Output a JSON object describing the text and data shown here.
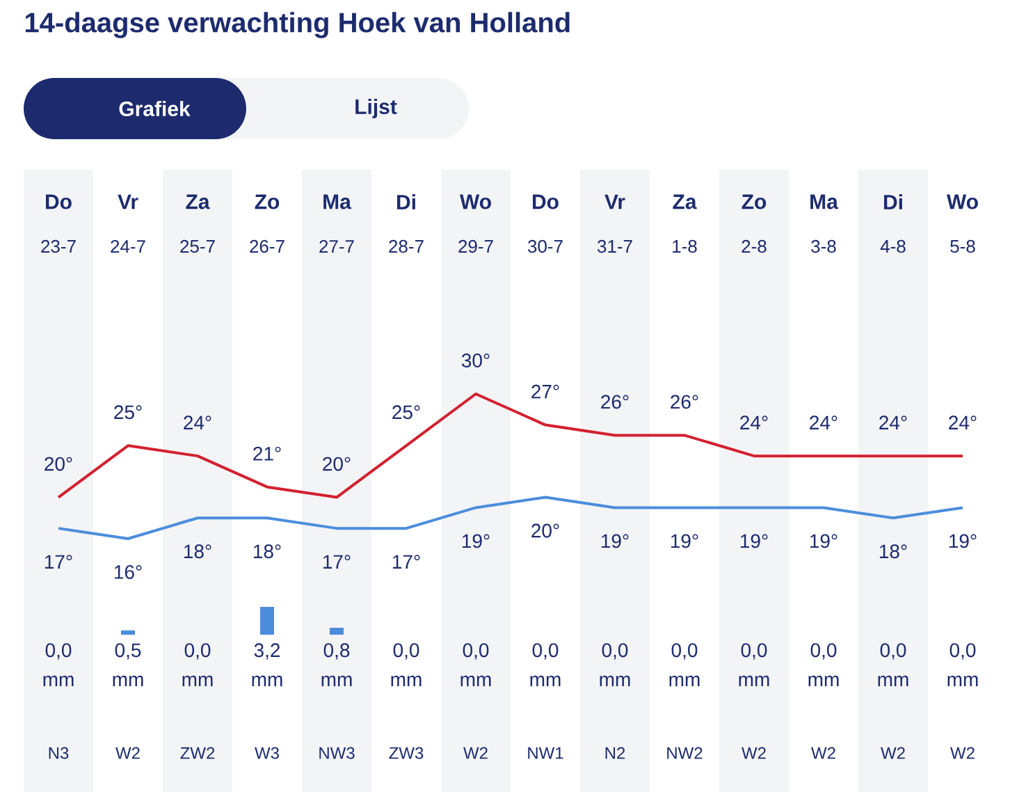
{
  "chart_data": [
    {
      "type": "line",
      "title": "14-daagse verwachting Hoek van Holland",
      "categories": [
        "Do",
        "Vr",
        "Za",
        "Zo",
        "Ma",
        "Di",
        "Wo",
        "Do",
        "Vr",
        "Za",
        "Zo",
        "Ma",
        "Di",
        "Wo"
      ],
      "series": [
        {
          "color": "#d3202f",
          "values": [
            20,
            25,
            24,
            21,
            20,
            25,
            30,
            27,
            26,
            26,
            24,
            24,
            24,
            24
          ],
          "value_labels": [
            "20°",
            "25°",
            "24°",
            "21°",
            "20°",
            "25°",
            "30°",
            "27°",
            "26°",
            "26°",
            "24°",
            "24°",
            "24°",
            "24°"
          ]
        },
        {
          "color": "#4b8ddc",
          "values": [
            17,
            16,
            18,
            18,
            17,
            17,
            19,
            20,
            19,
            19,
            19,
            19,
            18,
            19
          ],
          "value_labels": [
            "17°",
            "16°",
            "18°",
            "18°",
            "17°",
            "17°",
            "19°",
            "20°",
            "19°",
            "19°",
            "19°",
            "19°",
            "18°",
            "19°"
          ]
        }
      ],
      "annotations": [
        "Grafiek",
        "Lijst",
        "23-7",
        "24-7",
        "25-7",
        "26-7",
        "27-7",
        "28-7",
        "29-7",
        "30-7",
        "31-7",
        "1-8",
        "2-8",
        "3-8",
        "4-8",
        "5-8"
      ]
    },
    {
      "type": "bar",
      "categories": [
        "N3",
        "W2",
        "ZW2",
        "W3",
        "NW3",
        "ZW3",
        "W2",
        "NW1",
        "N2",
        "NW2",
        "W2",
        "W2",
        "W2",
        "W2"
      ],
      "color": "#4b8ddc",
      "values": [
        0,
        0.5,
        0,
        3.2,
        0.8,
        0,
        0,
        0,
        0,
        0,
        0,
        0,
        0,
        0
      ],
      "value_labels": [
        "0,0 mm",
        "0,5 mm",
        "0,0 mm",
        "3,2 mm",
        "0,8 mm",
        "0,0 mm",
        "0,0 mm",
        "0,0 mm",
        "0,0 mm",
        "0,0 mm",
        "0,0 mm",
        "0,0 mm",
        "0,0 mm",
        "0,0 mm"
      ]
    }
  ]
}
